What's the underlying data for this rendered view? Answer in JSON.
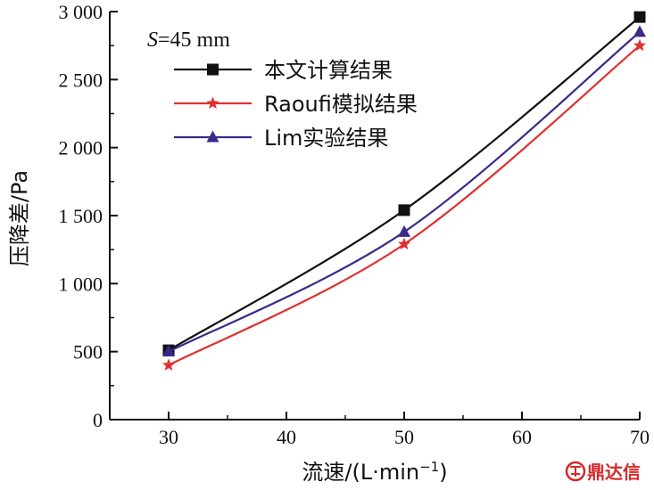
{
  "chart_data": {
    "type": "line",
    "x": [
      30,
      50,
      70
    ],
    "xlim": [
      25,
      70
    ],
    "ylim": [
      0,
      3000
    ],
    "xticks": [
      "30",
      "40",
      "50",
      "60",
      "70"
    ],
    "yticks": [
      "0",
      "500",
      "1 000",
      "1 500",
      "2 000",
      "2 500",
      "3 000"
    ],
    "xlabel": "流速/(L·min",
    "xlabel_sup": "−1",
    "xlabel_end": ")",
    "ylabel": "压降差/Pa",
    "annotation": {
      "var": "S",
      "rest": "=45 mm"
    },
    "legend_position": "top-left",
    "series": [
      {
        "name": "本文计算结果",
        "values": [
          510,
          1540,
          2960
        ],
        "color": "#111111",
        "marker": "square"
      },
      {
        "name": "Raoufi模拟结果",
        "values": [
          400,
          1290,
          2750
        ],
        "color": "#e03030",
        "marker": "star"
      },
      {
        "name": "Lim实验结果",
        "values": [
          500,
          1380,
          2850
        ],
        "color": "#3a2a8a",
        "marker": "triangle"
      }
    ]
  },
  "watermark": {
    "text": "鼎达信"
  }
}
